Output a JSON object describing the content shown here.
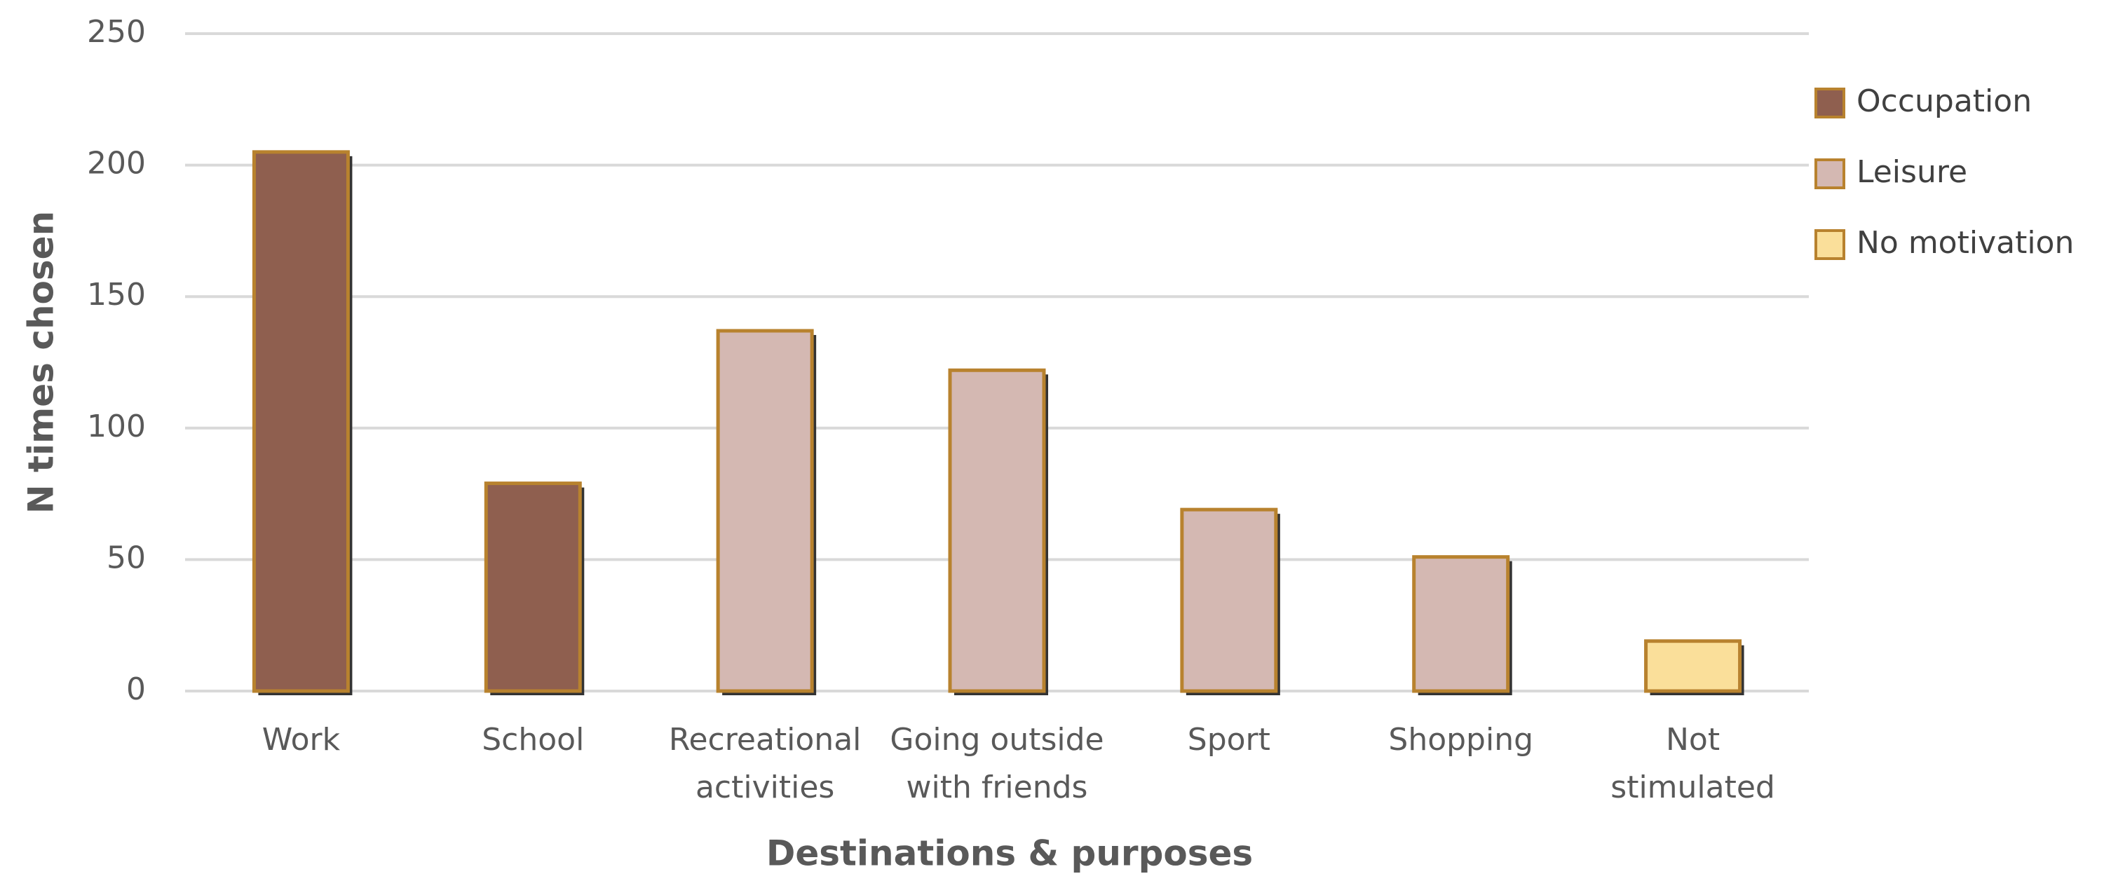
{
  "chart_data": {
    "type": "bar",
    "x_label": "Destinations & purposes",
    "y_label": "N times chosen",
    "categories": [
      [
        "Work"
      ],
      [
        "School"
      ],
      [
        "Recreational",
        "activities"
      ],
      [
        "Going outside",
        "with friends"
      ],
      [
        "Sport"
      ],
      [
        "Shopping"
      ],
      [
        "Not",
        "stimulated"
      ]
    ],
    "series": [
      {
        "name": "Occupation",
        "color": "#8f5f4f",
        "values": [
          205,
          79,
          null,
          null,
          null,
          null,
          null
        ]
      },
      {
        "name": "Leisure",
        "color": "#d4b8b2",
        "values": [
          null,
          null,
          137,
          122,
          69,
          51,
          null
        ]
      },
      {
        "name": "No motivation",
        "color": "#fadf9a",
        "values": [
          null,
          null,
          null,
          null,
          null,
          null,
          19
        ]
      }
    ],
    "bar_edge_color": "#b8822e",
    "ylim": [
      0,
      250
    ],
    "yticks": [
      0,
      50,
      100,
      150,
      200,
      250
    ],
    "grid": true,
    "legend": "right"
  }
}
